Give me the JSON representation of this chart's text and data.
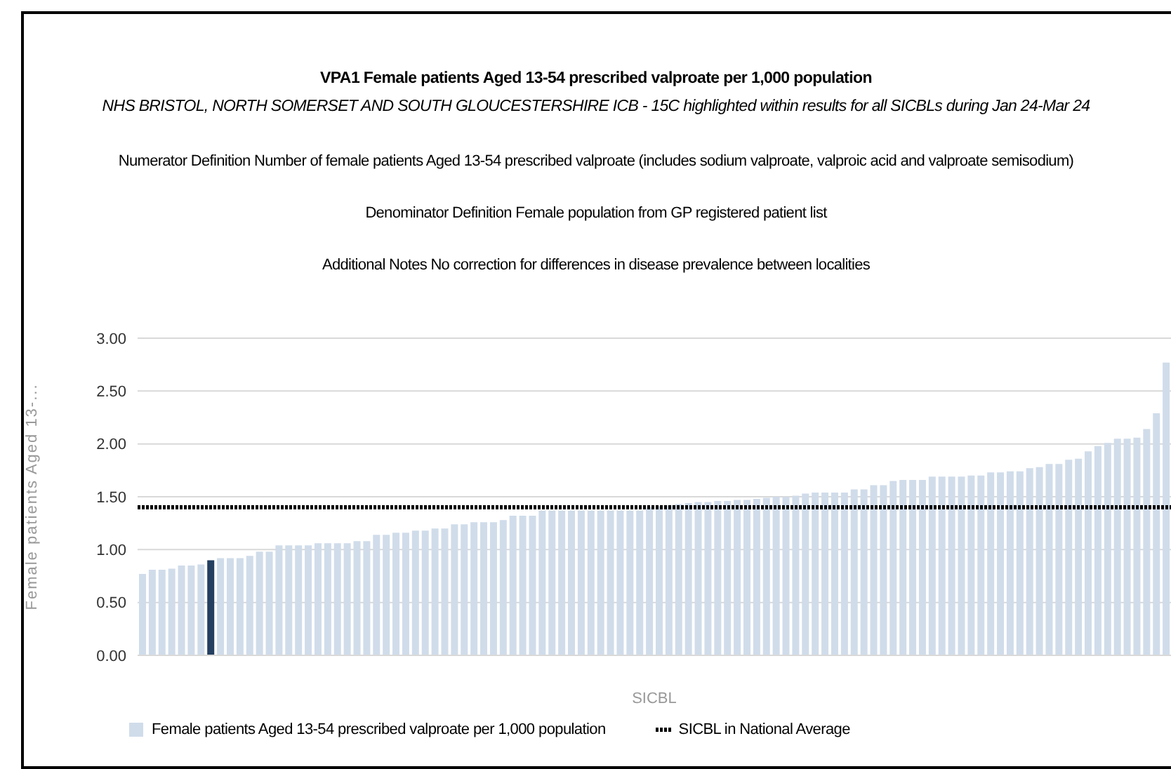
{
  "chart_data": {
    "type": "bar",
    "title": "VPA1 Female patients Aged 13-54 prescribed valproate per 1,000 population",
    "subtitle": "NHS BRISTOL, NORTH SOMERSET AND SOUTH GLOUCESTERSHIRE ICB - 15C highlighted within results for all SICBLs during Jan 24-Mar 24",
    "annotations": [
      "Numerator Definition Number of female patients Aged 13-54 prescribed valproate (includes sodium valproate, valproic acid and valproate semisodium)",
      "Denominator Definition Female population from GP registered patient list",
      "Additional Notes No correction for differences in disease prevalence between localities"
    ],
    "xlabel": "SICBL",
    "ylabel": "Female patients Aged 13-...",
    "categories": [
      null,
      null,
      null,
      null,
      null,
      null,
      null,
      null,
      null,
      null,
      null,
      null,
      null,
      null,
      null,
      null,
      null,
      null,
      null,
      null,
      null,
      null,
      null,
      null,
      null,
      null,
      null,
      null,
      null,
      null,
      null,
      null,
      null,
      null,
      null,
      null,
      null,
      null,
      null,
      null,
      null,
      null,
      null,
      null,
      null,
      null,
      null,
      null,
      null,
      null,
      null,
      null,
      null,
      null,
      null,
      null,
      null,
      null,
      null,
      null,
      null,
      null,
      null,
      null,
      null,
      null,
      null,
      null,
      null,
      null,
      null,
      null,
      null,
      null,
      null,
      null,
      null,
      null,
      null,
      null,
      null,
      null,
      null,
      null,
      null,
      null,
      null,
      null,
      null,
      null,
      null,
      null,
      null,
      null,
      null,
      null,
      null,
      null,
      null,
      null,
      null,
      null,
      null,
      null,
      null,
      null
    ],
    "series": [
      {
        "name": "Female patients Aged 13-54 prescribed valproate per 1,000 population",
        "color": "#d0dcea",
        "values": [
          0.77,
          0.81,
          0.81,
          0.82,
          0.85,
          0.85,
          0.86,
          0.9,
          0.92,
          0.92,
          0.92,
          0.94,
          0.98,
          0.98,
          1.04,
          1.04,
          1.04,
          1.04,
          1.06,
          1.06,
          1.06,
          1.06,
          1.08,
          1.08,
          1.14,
          1.14,
          1.16,
          1.16,
          1.18,
          1.18,
          1.2,
          1.2,
          1.24,
          1.24,
          1.26,
          1.26,
          1.26,
          1.28,
          1.32,
          1.32,
          1.32,
          1.37,
          1.37,
          1.37,
          1.37,
          1.37,
          1.37,
          1.37,
          1.37,
          1.37,
          1.37,
          1.37,
          1.4,
          1.41,
          1.42,
          1.43,
          1.44,
          1.45,
          1.45,
          1.46,
          1.46,
          1.47,
          1.47,
          1.48,
          1.49,
          1.5,
          1.5,
          1.51,
          1.53,
          1.54,
          1.54,
          1.54,
          1.54,
          1.57,
          1.57,
          1.61,
          1.61,
          1.65,
          1.66,
          1.66,
          1.66,
          1.69,
          1.69,
          1.69,
          1.69,
          1.7,
          1.7,
          1.73,
          1.73,
          1.74,
          1.74,
          1.77,
          1.78,
          1.81,
          1.81,
          1.85,
          1.86,
          1.93,
          1.98,
          2.01,
          2.05,
          2.05,
          2.06,
          2.14,
          2.29,
          2.77
        ],
        "colors": [
          "#d0dcea",
          "#d0dcea",
          "#d0dcea",
          "#d0dcea",
          "#d0dcea",
          "#d0dcea",
          "#d0dcea",
          "#243f60",
          "#d0dcea",
          "#d0dcea",
          "#d0dcea",
          "#d0dcea",
          "#d0dcea",
          "#d0dcea",
          "#d0dcea",
          "#d0dcea",
          "#d0dcea",
          "#d0dcea",
          "#d0dcea",
          "#d0dcea",
          "#d0dcea",
          "#d0dcea",
          "#d0dcea",
          "#d0dcea",
          "#d0dcea",
          "#d0dcea",
          "#d0dcea",
          "#d0dcea",
          "#d0dcea",
          "#d0dcea",
          "#d0dcea",
          "#d0dcea",
          "#d0dcea",
          "#d0dcea",
          "#d0dcea",
          "#d0dcea",
          "#d0dcea",
          "#d0dcea",
          "#d0dcea",
          "#d0dcea",
          "#d0dcea",
          "#d0dcea",
          "#d0dcea",
          "#d0dcea",
          "#d0dcea",
          "#d0dcea",
          "#d0dcea",
          "#d0dcea",
          "#d0dcea",
          "#d0dcea",
          "#d0dcea",
          "#d0dcea",
          "#d0dcea",
          "#d0dcea",
          "#d0dcea",
          "#d0dcea",
          "#d0dcea",
          "#d0dcea",
          "#d0dcea",
          "#d0dcea",
          "#d0dcea",
          "#d0dcea",
          "#d0dcea",
          "#d0dcea",
          "#d0dcea",
          "#d0dcea",
          "#d0dcea",
          "#d0dcea",
          "#d0dcea",
          "#d0dcea",
          "#d0dcea",
          "#d0dcea",
          "#d0dcea",
          "#d0dcea",
          "#d0dcea",
          "#d0dcea",
          "#d0dcea",
          "#d0dcea",
          "#d0dcea",
          "#d0dcea",
          "#d0dcea",
          "#d0dcea",
          "#d0dcea",
          "#d0dcea",
          "#d0dcea",
          "#d0dcea",
          "#d0dcea",
          "#d0dcea",
          "#d0dcea",
          "#d0dcea",
          "#d0dcea",
          "#d0dcea",
          "#d0dcea",
          "#d0dcea",
          "#d0dcea",
          "#d0dcea",
          "#d0dcea",
          "#d0dcea",
          "#d0dcea",
          "#d0dcea",
          "#d0dcea",
          "#d0dcea",
          "#d0dcea",
          "#d0dcea",
          "#d0dcea",
          "#d0dcea"
        ]
      }
    ],
    "ylim": [
      0,
      3
    ],
    "yticks": [
      {
        "value": 0,
        "label": "0.00"
      },
      {
        "value": 0.5,
        "label": "0.50"
      },
      {
        "value": 1,
        "label": "1.00"
      },
      {
        "value": 1.5,
        "label": "1.50"
      },
      {
        "value": 2,
        "label": "2.00"
      },
      {
        "value": 2.5,
        "label": "2.50"
      },
      {
        "value": 3,
        "label": "3.00"
      }
    ],
    "ref_lines": [
      {
        "axis": "y",
        "value": 1.4,
        "label": "SICBL in National Average",
        "color": "#000000",
        "line_style": "dotted"
      }
    ],
    "grid": "y",
    "legend": "bottom left"
  }
}
